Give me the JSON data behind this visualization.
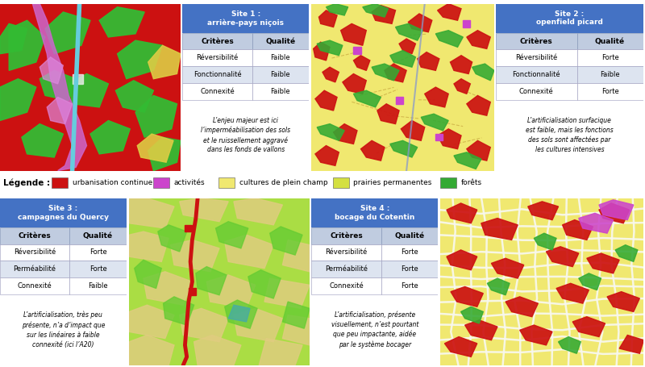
{
  "bg_color": "#ffffff",
  "header_color": "#4472c4",
  "sites": [
    {
      "title": "Site 1 :\narrière-pays niçois",
      "criteria": [
        "Réversibilité",
        "Fonctionnalité",
        "Connexité"
      ],
      "qualities": [
        "Faible",
        "Faible",
        "Faible"
      ],
      "description": "L’enjeu majeur est ici\nl’imperméabilisation des sols\net le ruissellement aggravé\ndans les fonds de vallons"
    },
    {
      "title": "Site 2 :\nopenfield picard",
      "criteria": [
        "Réversibilité",
        "Fonctionnalité",
        "Connexité"
      ],
      "qualities": [
        "Forte",
        "Faible",
        "Forte"
      ],
      "description": "L’artificialisation surfacique\nest faible, mais les fonctions\ndes sols sont affectées par\nles cultures intensives"
    },
    {
      "title": "Site 3 :\ncampagnes du Quercy",
      "criteria": [
        "Réversibilité",
        "Perméabilité",
        "Connexité"
      ],
      "qualities": [
        "Forte",
        "Forte",
        "Faible"
      ],
      "description": "L’artificialisation, très peu\nprésente, n’a d’impact que\nsur les linéaires à faible\nconnexité (ici l’A20)"
    },
    {
      "title": "Site 4 :\nbocage du Cotentin",
      "criteria": [
        "Réversibilité",
        "Perméabilité",
        "Connexité"
      ],
      "qualities": [
        "Forte",
        "Forte",
        "Forte"
      ],
      "description": "L’artificialisation, présente\nvisuellement, n’est pourtant\nque peu impactante, aidée\npar le système bocager"
    }
  ],
  "legend_items": [
    {
      "label": "urbanisation continue",
      "color": "#cc1111"
    },
    {
      "label": "activités",
      "color": "#cc44cc"
    },
    {
      "label": "cultures de plein champ",
      "color": "#f0e870"
    },
    {
      "label": "prairies permanentes",
      "color": "#d4e040"
    },
    {
      "label": "forêts",
      "color": "#33aa33"
    }
  ]
}
